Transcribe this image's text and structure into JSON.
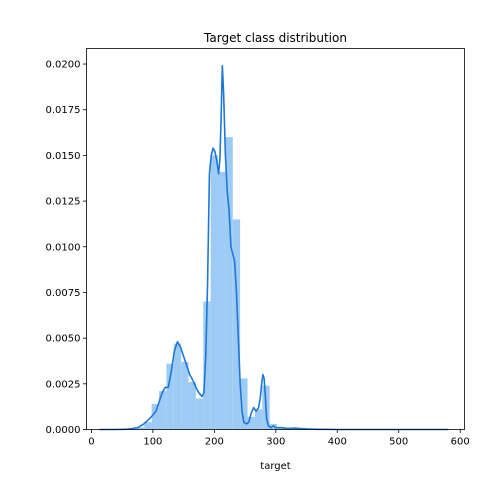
{
  "chart_data": {
    "type": "area",
    "title": "Target class distribution",
    "xlabel": "target",
    "ylabel": "",
    "xlim": [
      -8,
      607
    ],
    "ylim": [
      0,
      0.02085
    ],
    "xticks": [
      0,
      100,
      200,
      300,
      400,
      500,
      600
    ],
    "xtick_labels": [
      "0",
      "100",
      "200",
      "300",
      "400",
      "500",
      "600"
    ],
    "yticks": [
      0,
      0.0025,
      0.005,
      0.0075,
      0.01,
      0.0125,
      0.015,
      0.0175,
      0.02
    ],
    "ytick_labels": [
      "0.0000",
      "0.0025",
      "0.0050",
      "0.0075",
      "0.0100",
      "0.0125",
      "0.0150",
      "0.0175",
      "0.0200"
    ],
    "grid": false,
    "colors": {
      "bars": "#9ecbf5",
      "kde": "#1f77d4",
      "axis": "#000000"
    },
    "histogram": {
      "name": "histogram",
      "bins": [
        {
          "x0": 14,
          "x1": 26,
          "value": 0
        },
        {
          "x0": 26,
          "x1": 38,
          "value": 0
        },
        {
          "x0": 38,
          "x1": 50,
          "value": 0
        },
        {
          "x0": 50,
          "x1": 62,
          "value": 0
        },
        {
          "x0": 62,
          "x1": 74,
          "value": 3e-05
        },
        {
          "x0": 74,
          "x1": 86,
          "value": 0.00012
        },
        {
          "x0": 86,
          "x1": 98,
          "value": 0.0004
        },
        {
          "x0": 98,
          "x1": 110,
          "value": 0.0014
        },
        {
          "x0": 110,
          "x1": 122,
          "value": 0.0021
        },
        {
          "x0": 122,
          "x1": 134,
          "value": 0.0036
        },
        {
          "x0": 134,
          "x1": 146,
          "value": 0.0047
        },
        {
          "x0": 146,
          "x1": 158,
          "value": 0.0037
        },
        {
          "x0": 158,
          "x1": 170,
          "value": 0.0026
        },
        {
          "x0": 170,
          "x1": 182,
          "value": 0.0017
        },
        {
          "x0": 182,
          "x1": 194,
          "value": 0.007
        },
        {
          "x0": 194,
          "x1": 206,
          "value": 0.015
        },
        {
          "x0": 206,
          "x1": 218,
          "value": 0.0141
        },
        {
          "x0": 218,
          "x1": 230,
          "value": 0.016
        },
        {
          "x0": 230,
          "x1": 242,
          "value": 0.0115
        },
        {
          "x0": 242,
          "x1": 254,
          "value": 0.0028
        },
        {
          "x0": 254,
          "x1": 266,
          "value": 0.0007
        },
        {
          "x0": 266,
          "x1": 278,
          "value": 0.0011
        },
        {
          "x0": 278,
          "x1": 290,
          "value": 0.0024
        },
        {
          "x0": 290,
          "x1": 302,
          "value": 0.0003
        },
        {
          "x0": 302,
          "x1": 314,
          "value": 0.0001
        },
        {
          "x0": 314,
          "x1": 326,
          "value": 0.0001
        },
        {
          "x0": 326,
          "x1": 338,
          "value": 5e-05
        },
        {
          "x0": 338,
          "x1": 350,
          "value": 3e-05
        },
        {
          "x0": 350,
          "x1": 362,
          "value": 2e-05
        },
        {
          "x0": 362,
          "x1": 374,
          "value": 2e-05
        },
        {
          "x0": 374,
          "x1": 386,
          "value": 1e-05
        },
        {
          "x0": 386,
          "x1": 398,
          "value": 0
        }
      ]
    },
    "kde": {
      "name": "kde",
      "x": [
        14,
        40,
        60,
        75,
        85,
        95,
        105,
        110,
        115,
        120,
        125,
        130,
        135,
        140,
        145,
        150,
        155,
        160,
        165,
        170,
        175,
        180,
        183,
        186,
        189,
        192,
        195,
        198,
        201,
        204,
        207,
        209,
        211,
        213,
        215,
        218,
        221,
        224,
        227,
        230,
        233,
        236,
        239,
        242,
        245,
        248,
        252,
        256,
        260,
        264,
        268,
        272,
        275,
        277,
        279,
        281,
        283,
        285,
        288,
        292,
        296,
        300,
        310,
        320,
        330,
        340,
        350,
        360,
        370,
        380,
        400,
        450,
        500,
        550,
        580
      ],
      "y": [
        0,
        0,
        2e-05,
        0.0001,
        0.0003,
        0.0006,
        0.001,
        0.0015,
        0.002,
        0.0023,
        0.0023,
        0.0032,
        0.0043,
        0.0048,
        0.0045,
        0.004,
        0.0035,
        0.003,
        0.0027,
        0.0023,
        0.002,
        0.0018,
        0.002,
        0.004,
        0.008,
        0.014,
        0.015,
        0.0154,
        0.0152,
        0.0147,
        0.014,
        0.0148,
        0.017,
        0.0199,
        0.0185,
        0.015,
        0.013,
        0.012,
        0.01,
        0.0096,
        0.0092,
        0.0075,
        0.005,
        0.0025,
        0.001,
        0.0004,
        0.0003,
        0.0004,
        0.0009,
        0.0012,
        0.001,
        0.0012,
        0.0018,
        0.0025,
        0.003,
        0.0028,
        0.0018,
        0.0006,
        0.0002,
        0.0001,
        0.0002,
        0.0001,
        0.0001,
        5e-05,
        8e-05,
        5e-05,
        3e-05,
        2e-05,
        1e-05,
        1e-05,
        0,
        0,
        0,
        0,
        0
      ]
    }
  }
}
